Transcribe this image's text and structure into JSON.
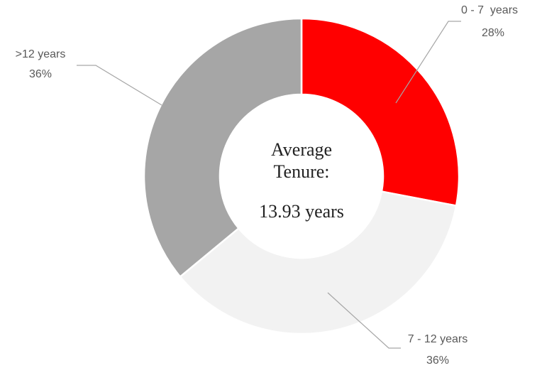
{
  "chart_data": {
    "type": "donut",
    "categories": [
      "0 - 7  years",
      "7 - 12 years",
      ">12 years"
    ],
    "values": [
      28,
      36,
      36
    ],
    "value_labels": [
      "28%",
      "36%",
      "36%"
    ],
    "colors": [
      "#ff0000",
      "#f2f2f2",
      "#a6a6a6"
    ],
    "center_text": [
      "Average Tenure:",
      "13.93 years"
    ]
  }
}
